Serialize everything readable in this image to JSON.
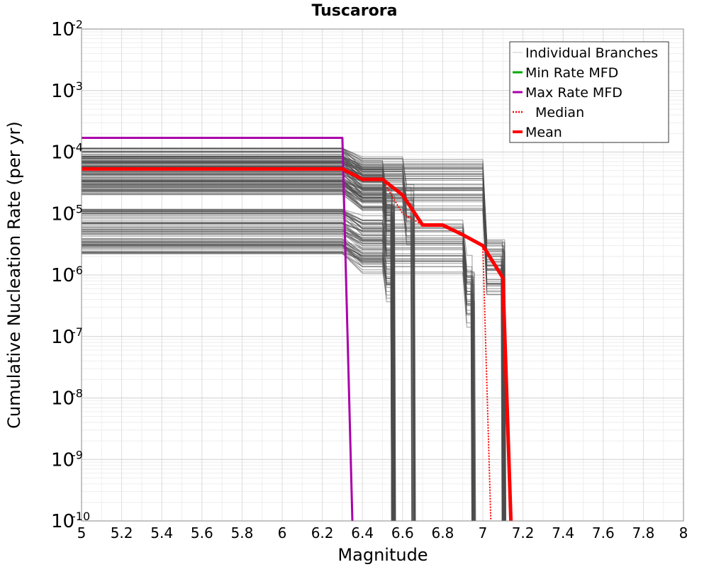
{
  "chart_data": {
    "type": "line",
    "title": "Tuscarora",
    "xlabel": "Magnitude",
    "ylabel": "Cumulative Nucleation Rate (per yr)",
    "xlim": [
      5,
      8
    ],
    "ylim": [
      1e-10,
      0.01
    ],
    "yscale": "log",
    "grid": true,
    "legend_position": "top-right",
    "x_ticks": [
      "5",
      "5.2",
      "5.4",
      "5.6",
      "5.8",
      "6",
      "6.2",
      "6.4",
      "6.6",
      "6.8",
      "7",
      "7.2",
      "7.4",
      "7.6",
      "7.8",
      "8"
    ],
    "y_ticks": [
      {
        "base": "10",
        "exp": "-10"
      },
      {
        "base": "10",
        "exp": "-9"
      },
      {
        "base": "10",
        "exp": "-8"
      },
      {
        "base": "10",
        "exp": "-7"
      },
      {
        "base": "10",
        "exp": "-6"
      },
      {
        "base": "10",
        "exp": "-5"
      },
      {
        "base": "10",
        "exp": "-4"
      },
      {
        "base": "10",
        "exp": "-3"
      },
      {
        "base": "10",
        "exp": "-2"
      }
    ],
    "legend": [
      {
        "label": "Individual Branches",
        "color": "#aaaaaa",
        "style": "thin"
      },
      {
        "label": "Min Rate MFD",
        "color": "#00aa00",
        "style": "solid"
      },
      {
        "label": "Max Rate MFD",
        "color": "#aa00aa",
        "style": "solid"
      },
      {
        "label": "Median",
        "color": "#ff0000",
        "style": "dotted"
      },
      {
        "label": "Mean",
        "color": "#ff0000",
        "style": "thick"
      }
    ],
    "series": [
      {
        "name": "Max Rate MFD",
        "color": "#aa00aa",
        "x": [
          5.0,
          6.3,
          6.35
        ],
        "y": [
          0.00017,
          0.00017,
          1e-10
        ]
      },
      {
        "name": "Median",
        "color": "#ff0000",
        "x": [
          5.0,
          6.3,
          6.4,
          6.5,
          6.6,
          6.7,
          6.8,
          6.9,
          7.0,
          7.04
        ],
        "y": [
          5.2e-05,
          5.2e-05,
          3.5e-05,
          3.5e-05,
          1e-05,
          6.5e-06,
          6.5e-06,
          4.5e-06,
          3e-06,
          1e-10
        ]
      },
      {
        "name": "Mean",
        "color": "#ff0000",
        "x": [
          5.0,
          6.3,
          6.4,
          6.5,
          6.6,
          6.7,
          6.8,
          6.9,
          7.0,
          7.1,
          7.14
        ],
        "y": [
          5.3e-05,
          5.3e-05,
          3.6e-05,
          3.6e-05,
          2e-05,
          6.5e-06,
          6.5e-06,
          4.5e-06,
          3e-06,
          9e-07,
          1e-10
        ]
      }
    ],
    "branch_groups": [
      {
        "count": 60,
        "rate_range": [
          2e-05,
          0.00012
        ],
        "step_at": 6.5,
        "mid_ratio": 0.3,
        "drop_at": 6.55
      },
      {
        "count": 30,
        "rate_range": [
          2e-05,
          0.00012
        ],
        "step_at": 6.6,
        "mid_ratio": 0.3,
        "drop_at": 6.65
      },
      {
        "count": 50,
        "rate_range": [
          2e-05,
          0.00012
        ],
        "step_at": 7.0,
        "mid_ratio": 0.05,
        "drop_at": 7.1
      },
      {
        "count": 40,
        "rate_range": [
          2.2e-06,
          1.2e-05
        ],
        "step_at": 6.5,
        "mid_ratio": 0.35,
        "drop_at": 6.55
      },
      {
        "count": 40,
        "rate_range": [
          2.2e-06,
          1.2e-05
        ],
        "step_at": 6.9,
        "mid_ratio": 0.2,
        "drop_at": 6.95
      }
    ]
  }
}
